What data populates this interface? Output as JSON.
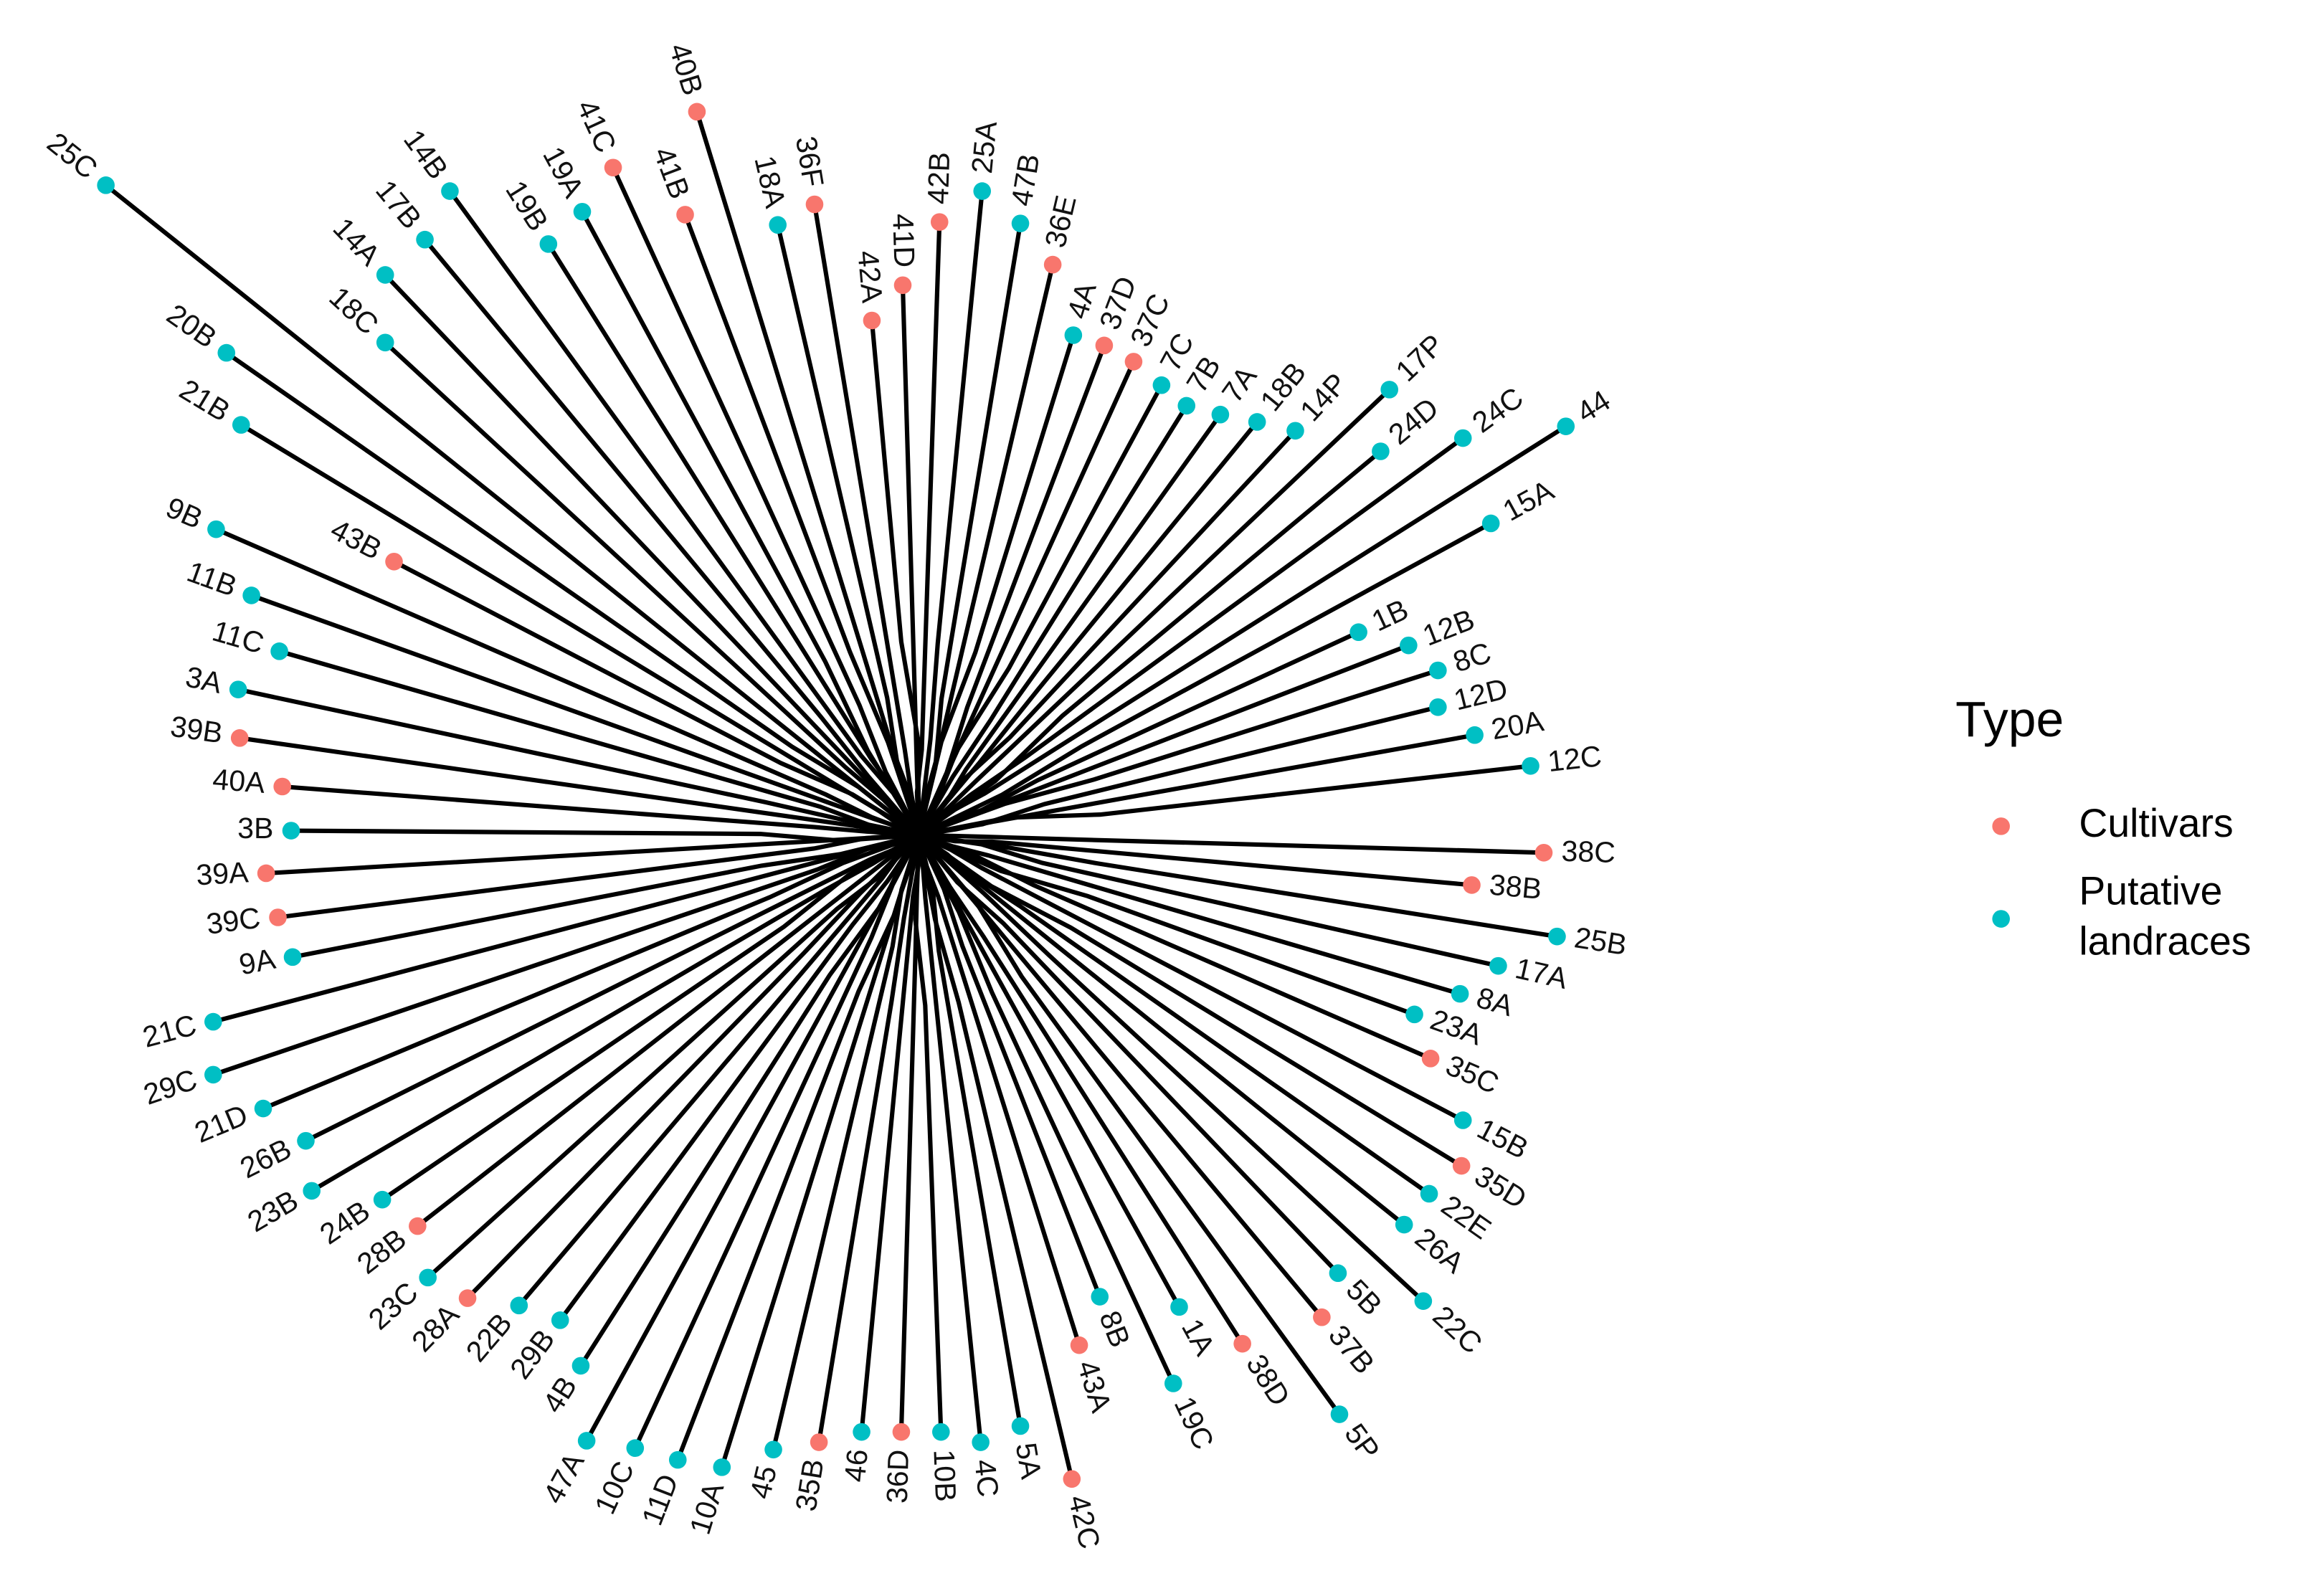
{
  "legend": {
    "title": "Type",
    "items": [
      {
        "label": "Cultivars",
        "color": "#f8766d"
      },
      {
        "label": "Putative landraces",
        "color": "#00bfc4"
      }
    ]
  },
  "leaves": [
    {
      "label": "25C",
      "type": 1
    },
    {
      "label": "14B",
      "type": 1
    },
    {
      "label": "17B",
      "type": 1
    },
    {
      "label": "14A",
      "type": 1
    },
    {
      "label": "18C",
      "type": 1
    },
    {
      "label": "20B",
      "type": 1
    },
    {
      "label": "21B",
      "type": 1
    },
    {
      "label": "9B",
      "type": 1
    },
    {
      "label": "43B",
      "type": 0
    },
    {
      "label": "11B",
      "type": 1
    },
    {
      "label": "11C",
      "type": 1
    },
    {
      "label": "3A",
      "type": 1
    },
    {
      "label": "39B",
      "type": 0
    },
    {
      "label": "40A",
      "type": 0
    },
    {
      "label": "3B",
      "type": 1
    },
    {
      "label": "39A",
      "type": 0
    },
    {
      "label": "39C",
      "type": 0
    },
    {
      "label": "9A",
      "type": 1
    },
    {
      "label": "21C",
      "type": 1
    },
    {
      "label": "29C",
      "type": 1
    },
    {
      "label": "21D",
      "type": 1
    },
    {
      "label": "26B",
      "type": 1
    },
    {
      "label": "23B",
      "type": 1
    },
    {
      "label": "24B",
      "type": 1
    },
    {
      "label": "28B",
      "type": 0
    },
    {
      "label": "23C",
      "type": 1
    },
    {
      "label": "28A",
      "type": 0
    },
    {
      "label": "22B",
      "type": 1
    },
    {
      "label": "29B",
      "type": 1
    },
    {
      "label": "4B",
      "type": 1
    },
    {
      "label": "47A",
      "type": 1
    },
    {
      "label": "10C",
      "type": 1
    },
    {
      "label": "11D",
      "type": 1
    },
    {
      "label": "10A",
      "type": 1
    },
    {
      "label": "45",
      "type": 1
    },
    {
      "label": "35B",
      "type": 0
    },
    {
      "label": "46",
      "type": 1
    },
    {
      "label": "36D",
      "type": 0
    },
    {
      "label": "10B",
      "type": 1
    },
    {
      "label": "4C",
      "type": 1
    },
    {
      "label": "5A",
      "type": 1
    },
    {
      "label": "42C",
      "type": 0
    },
    {
      "label": "43A",
      "type": 0
    },
    {
      "label": "8B",
      "type": 1
    },
    {
      "label": "19C",
      "type": 1
    },
    {
      "label": "1A",
      "type": 1
    },
    {
      "label": "38D",
      "type": 0
    },
    {
      "label": "5P",
      "type": 1
    },
    {
      "label": "37B",
      "type": 0
    },
    {
      "label": "5B",
      "type": 1
    },
    {
      "label": "22C",
      "type": 1
    },
    {
      "label": "26A",
      "type": 1
    },
    {
      "label": "22E",
      "type": 1
    },
    {
      "label": "35D",
      "type": 0
    },
    {
      "label": "15B",
      "type": 1
    },
    {
      "label": "35C",
      "type": 0
    },
    {
      "label": "23A",
      "type": 1
    },
    {
      "label": "8A",
      "type": 1
    },
    {
      "label": "17A",
      "type": 1
    },
    {
      "label": "25B",
      "type": 1
    },
    {
      "label": "38B",
      "type": 0
    },
    {
      "label": "38C",
      "type": 0
    },
    {
      "label": "12C",
      "type": 1
    },
    {
      "label": "20A",
      "type": 1
    },
    {
      "label": "12D",
      "type": 1
    },
    {
      "label": "8C",
      "type": 1
    },
    {
      "label": "12B",
      "type": 1
    },
    {
      "label": "1B",
      "type": 1
    },
    {
      "label": "15A",
      "type": 1
    },
    {
      "label": "44",
      "type": 1
    },
    {
      "label": "24C",
      "type": 1
    },
    {
      "label": "24D",
      "type": 1
    },
    {
      "label": "17P",
      "type": 1
    },
    {
      "label": "14P",
      "type": 1
    },
    {
      "label": "18B",
      "type": 1
    },
    {
      "label": "7A",
      "type": 1
    },
    {
      "label": "7B",
      "type": 1
    },
    {
      "label": "7C",
      "type": 1
    },
    {
      "label": "37C",
      "type": 0
    },
    {
      "label": "37D",
      "type": 0
    },
    {
      "label": "4A",
      "type": 1
    },
    {
      "label": "36E",
      "type": 0
    },
    {
      "label": "47B",
      "type": 1
    },
    {
      "label": "25A",
      "type": 1
    },
    {
      "label": "42B",
      "type": 0
    },
    {
      "label": "41D",
      "type": 0
    },
    {
      "label": "42A",
      "type": 0
    },
    {
      "label": "36F",
      "type": 0
    },
    {
      "label": "18A",
      "type": 1
    },
    {
      "label": "41B",
      "type": 0
    },
    {
      "label": "40B",
      "type": 0
    },
    {
      "label": "41C",
      "type": 0
    },
    {
      "label": "19A",
      "type": 1
    },
    {
      "label": "19B",
      "type": 1
    }
  ]
}
